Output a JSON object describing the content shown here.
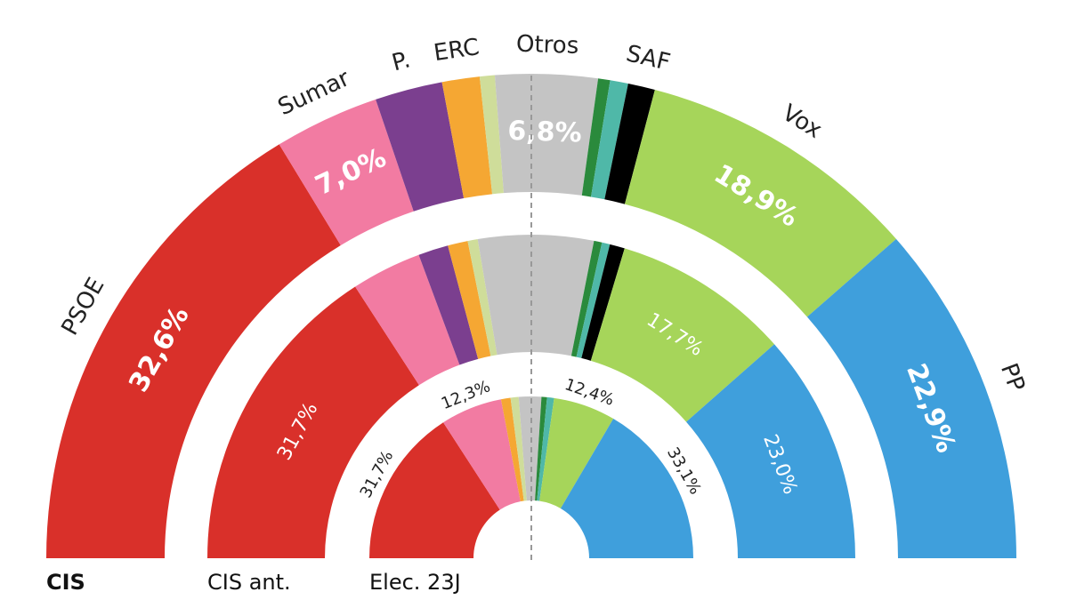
{
  "chart_data": {
    "type": "half-donut",
    "categories": [
      "PSOE",
      "Sumar",
      "P.",
      "ERC",
      null,
      "Otros",
      null,
      null,
      "SAF",
      "Vox",
      "PP"
    ],
    "colors": [
      "#d9302a",
      "#f27ba2",
      "#7b3f8f",
      "#f5a733",
      "#cfdd9a",
      "#c4c4c4",
      "#2a8a3c",
      "#4fb8a8",
      "#000000",
      "#a6d55a",
      "#3f9fdc"
    ],
    "series": [
      {
        "name": "CIS",
        "values": [
          32.6,
          7.0,
          4.5,
          2.5,
          1.0,
          6.8,
          0.8,
          1.2,
          1.8,
          18.9,
          22.9
        ],
        "value_labels": [
          "32,6%",
          "7,0%",
          null,
          null,
          null,
          "6,8%",
          null,
          null,
          null,
          "18,9%",
          "22,9%"
        ]
      },
      {
        "name": "CIS ant.",
        "values": [
          31.7,
          7.0,
          3.0,
          2.0,
          1.0,
          11.5,
          0.8,
          0.8,
          1.5,
          17.7,
          23.0
        ],
        "value_labels": [
          "31,7%",
          null,
          null,
          null,
          null,
          null,
          null,
          null,
          null,
          "17,7%",
          "23,0%"
        ]
      },
      {
        "name": "Elec. 23J",
        "values": [
          31.7,
          12.3,
          null,
          1.9,
          1.6,
          4.5,
          1.1,
          1.4,
          null,
          12.4,
          33.1
        ],
        "value_labels": [
          "31,7%",
          "12,3%",
          null,
          null,
          null,
          null,
          null,
          null,
          null,
          "12,4%",
          "33,1%"
        ]
      }
    ]
  }
}
